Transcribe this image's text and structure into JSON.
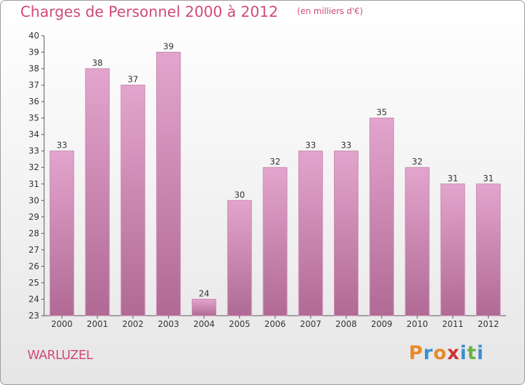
{
  "header": {
    "title": "Charges de Personnel 2000 à 2012",
    "subtitle": "(en milliers d'€)"
  },
  "location": {
    "name": "WARLUZEL"
  },
  "brand": {
    "letters": [
      {
        "char": "P",
        "color": "#e8892a"
      },
      {
        "char": "r",
        "color": "#3a8fd0"
      },
      {
        "char": "o",
        "color": "#e8892a"
      },
      {
        "char": "x",
        "color": "#cc3333"
      },
      {
        "char": "i",
        "color": "#3a8fd0"
      },
      {
        "char": "t",
        "color": "#6ab04c"
      },
      {
        "char": "i",
        "color": "#3a8fd0"
      }
    ]
  },
  "colors": {
    "bar_top": "#e3a5cd",
    "bar_bottom": "#b06a94",
    "bar_edge": "#c98ab2",
    "accent": "#d04a7a"
  },
  "chart_data": {
    "type": "bar",
    "categories": [
      "2000",
      "2001",
      "2002",
      "2003",
      "2004",
      "2005",
      "2006",
      "2007",
      "2008",
      "2009",
      "2010",
      "2011",
      "2012"
    ],
    "values": [
      33,
      38,
      37,
      39,
      24,
      30,
      32,
      33,
      33,
      35,
      32,
      31,
      31
    ],
    "ylim": [
      23,
      40
    ],
    "yticks": [
      23,
      24,
      25,
      26,
      27,
      28,
      29,
      30,
      31,
      32,
      33,
      34,
      35,
      36,
      37,
      38,
      39,
      40
    ],
    "grid": false,
    "legend": "none"
  }
}
